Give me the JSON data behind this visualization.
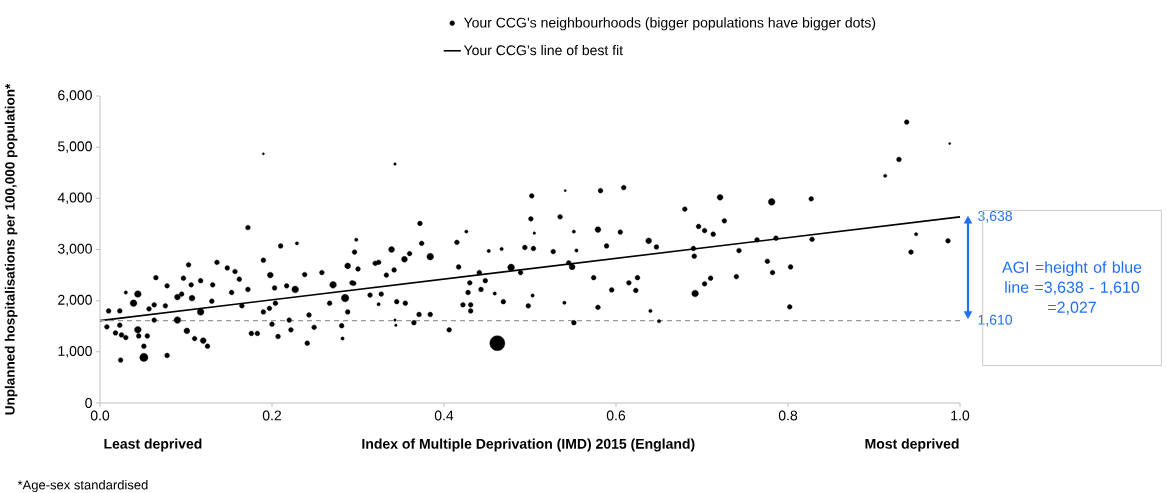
{
  "chart_data": {
    "type": "bubble",
    "xlabel": "Index of Multiple Deprivation (IMD) 2015 (England)",
    "ylabel": "Unplanned hospitalisations per 100,000 population*",
    "xlim": [
      0,
      1
    ],
    "ylim": [
      0,
      6000
    ],
    "xticks": [
      {
        "value": 0,
        "label": "0.0"
      },
      0.2,
      0.4,
      0.6,
      0.8,
      {
        "value": 1,
        "label": "1.0"
      }
    ],
    "yticks": [
      {
        "value": 0,
        "label": "0"
      },
      {
        "value": 1000,
        "label": "1,000"
      },
      {
        "value": 2000,
        "label": "2,000"
      },
      {
        "value": 3000,
        "label": "3,000"
      },
      {
        "value": 4000,
        "label": "4,000"
      },
      {
        "value": 5000,
        "label": "5,000"
      },
      {
        "value": 6000,
        "label": "6,000"
      }
    ],
    "grid": false,
    "legend": "top",
    "series": [
      {
        "name": "Your CCG’s neighbourhoods (bigger populations have bigger dots)",
        "color": "#000000",
        "marker": "circle",
        "x": [
          0.008,
          0.01,
          0.018,
          0.023,
          0.023,
          0.024,
          0.025,
          0.03,
          0.03,
          0.039,
          0.044,
          0.044,
          0.045,
          0.051,
          0.051,
          0.055,
          0.057,
          0.063,
          0.063,
          0.065,
          0.076,
          0.078,
          0.078,
          0.09,
          0.09,
          0.095,
          0.097,
          0.101,
          0.103,
          0.106,
          0.107,
          0.11,
          0.117,
          0.117,
          0.12,
          0.125,
          0.13,
          0.131,
          0.136,
          0.148,
          0.153,
          0.157,
          0.162,
          0.165,
          0.172,
          0.172,
          0.176,
          0.183,
          0.19,
          0.19,
          0.19,
          0.197,
          0.198,
          0.2,
          0.203,
          0.204,
          0.207,
          0.21,
          0.217,
          0.22,
          0.222,
          0.227,
          0.229,
          0.238,
          0.241,
          0.243,
          0.249,
          0.258,
          0.267,
          0.271,
          0.281,
          0.282,
          0.285,
          0.288,
          0.288,
          0.293,
          0.295,
          0.296,
          0.298,
          0.3,
          0.314,
          0.32,
          0.324,
          0.324,
          0.327,
          0.333,
          0.339,
          0.342,
          0.343,
          0.343,
          0.344,
          0.345,
          0.354,
          0.355,
          0.36,
          0.365,
          0.371,
          0.372,
          0.374,
          0.384,
          0.384,
          0.406,
          0.415,
          0.417,
          0.422,
          0.426,
          0.428,
          0.43,
          0.431,
          0.431,
          0.441,
          0.443,
          0.448,
          0.452,
          0.459,
          0.462,
          0.467,
          0.469,
          0.478,
          0.489,
          0.494,
          0.498,
          0.501,
          0.502,
          0.503,
          0.504,
          0.505,
          0.527,
          0.535,
          0.54,
          0.541,
          0.545,
          0.549,
          0.551,
          0.551,
          0.554,
          0.574,
          0.579,
          0.579,
          0.582,
          0.589,
          0.595,
          0.605,
          0.609,
          0.615,
          0.623,
          0.625,
          0.638,
          0.64,
          0.647,
          0.65,
          0.68,
          0.69,
          0.691,
          0.692,
          0.696,
          0.703,
          0.703,
          0.71,
          0.713,
          0.721,
          0.726,
          0.74,
          0.743,
          0.764,
          0.776,
          0.781,
          0.782,
          0.786,
          0.802,
          0.803,
          0.827,
          0.828,
          0.913,
          0.929,
          0.938,
          0.943,
          0.949,
          0.986,
          0.988
        ],
        "values": [
          1490,
          1800,
          1370,
          1800,
          1520,
          840,
          1330,
          2160,
          1280,
          1950,
          2130,
          1430,
          1310,
          1110,
          890,
          1310,
          1840,
          1920,
          1620,
          2450,
          1900,
          2290,
          930,
          2070,
          1620,
          2130,
          2440,
          1410,
          2700,
          2310,
          2050,
          1260,
          2390,
          1780,
          1220,
          1110,
          1990,
          2310,
          2750,
          2640,
          2160,
          2570,
          2420,
          1900,
          2220,
          3430,
          1360,
          1360,
          2790,
          1780,
          4870,
          1850,
          2500,
          1540,
          2250,
          1950,
          1300,
          3070,
          2290,
          1620,
          1430,
          2220,
          3120,
          2510,
          1170,
          1720,
          1480,
          2550,
          1950,
          2310,
          1510,
          1260,
          2050,
          2680,
          1780,
          2350,
          2340,
          2950,
          3190,
          2620,
          2110,
          2730,
          2750,
          1930,
          2130,
          2500,
          3000,
          2600,
          4670,
          1620,
          1520,
          1980,
          2810,
          1950,
          2920,
          1570,
          1730,
          3510,
          3120,
          2860,
          1730,
          1430,
          3140,
          2660,
          1920,
          3350,
          2160,
          2350,
          1920,
          1800,
          2550,
          2220,
          2390,
          2970,
          2140,
          1170,
          3010,
          1980,
          2650,
          2550,
          3040,
          1900,
          3600,
          4050,
          2100,
          3020,
          3320,
          2960,
          3640,
          1960,
          4150,
          2740,
          2660,
          3350,
          1570,
          2980,
          2450,
          3390,
          1870,
          4150,
          3070,
          2210,
          3340,
          4210,
          2350,
          2200,
          2450,
          3170,
          1800,
          3050,
          1600,
          3790,
          3020,
          2870,
          2140,
          3450,
          3370,
          2330,
          2440,
          3300,
          4020,
          3560,
          2470,
          2980,
          3190,
          2770,
          3930,
          2550,
          3220,
          1880,
          2660,
          3990,
          3200,
          4440,
          4760,
          5490,
          2950,
          3300,
          3170,
          5070
        ],
        "sizes": [
          0.1,
          0.1,
          0.1,
          0.1,
          0.1,
          0.1,
          0.1,
          0.05,
          0.1,
          0.2,
          0.2,
          0.2,
          0.1,
          0.1,
          0.3,
          0.1,
          0.1,
          0.1,
          0.1,
          0.1,
          0.1,
          0.1,
          0.1,
          0.15,
          0.2,
          0.1,
          0.1,
          0.15,
          0.1,
          0.1,
          0.15,
          0.1,
          0.1,
          0.2,
          0.15,
          0.1,
          0.1,
          0.1,
          0.1,
          0.1,
          0.1,
          0.1,
          0.1,
          0.1,
          0.1,
          0.1,
          0.1,
          0.1,
          0.1,
          0.1,
          0.02,
          0.1,
          0.15,
          0.1,
          0.1,
          0.1,
          0.1,
          0.1,
          0.1,
          0.1,
          0.1,
          0.2,
          0.05,
          0.1,
          0.1,
          0.1,
          0.1,
          0.1,
          0.1,
          0.2,
          0.1,
          0.05,
          0.25,
          0.15,
          0.1,
          0.1,
          0.1,
          0.1,
          0.05,
          0.1,
          0.1,
          0.1,
          0.1,
          0.05,
          0.1,
          0.1,
          0.15,
          0.1,
          0.03,
          0.03,
          0.03,
          0.1,
          0.15,
          0.1,
          0.1,
          0.1,
          0.1,
          0.1,
          0.1,
          0.2,
          0.1,
          0.1,
          0.1,
          0.1,
          0.1,
          0.05,
          0.1,
          0.1,
          0.1,
          0.1,
          0.1,
          0.1,
          0.1,
          0.05,
          0.05,
          1,
          0.05,
          0.1,
          0.2,
          0.1,
          0.1,
          0.1,
          0.1,
          0.1,
          0.05,
          0.1,
          0.03,
          0.1,
          0.1,
          0.05,
          0.02,
          0.1,
          0.15,
          0.05,
          0.1,
          0.05,
          0.1,
          0.15,
          0.1,
          0.1,
          0.1,
          0.1,
          0.1,
          0.1,
          0.1,
          0.1,
          0.1,
          0.15,
          0.05,
          0.1,
          0.05,
          0.1,
          0.1,
          0.1,
          0.2,
          0.1,
          0.1,
          0.1,
          0.1,
          0.1,
          0.15,
          0.1,
          0.1,
          0.1,
          0.1,
          0.1,
          0.2,
          0.1,
          0.1,
          0.1,
          0.1,
          0.1,
          0.1,
          0.05,
          0.1,
          0.1,
          0.1,
          0.05,
          0.1,
          0.02
        ]
      },
      {
        "name": "Your CCG’s line of best fit",
        "type": "line",
        "color": "#000000",
        "marker": "none",
        "line_style": "solid",
        "x": [
          0,
          1
        ],
        "values": [
          1610,
          3638
        ]
      }
    ],
    "ref_lines": [
      {
        "axis": "y",
        "value": 1610,
        "color": "#999999",
        "line_style": "dashed"
      }
    ],
    "annotations": [
      {
        "text": "3,638",
        "x": 1,
        "y": 3638
      },
      {
        "text": "1,610",
        "x": 1,
        "y": 1610
      },
      "AGI =height of blue line =3,638 - 1,610 =2,027",
      "Least deprived",
      "Most deprived",
      "*Age-sex standardised"
    ]
  }
}
